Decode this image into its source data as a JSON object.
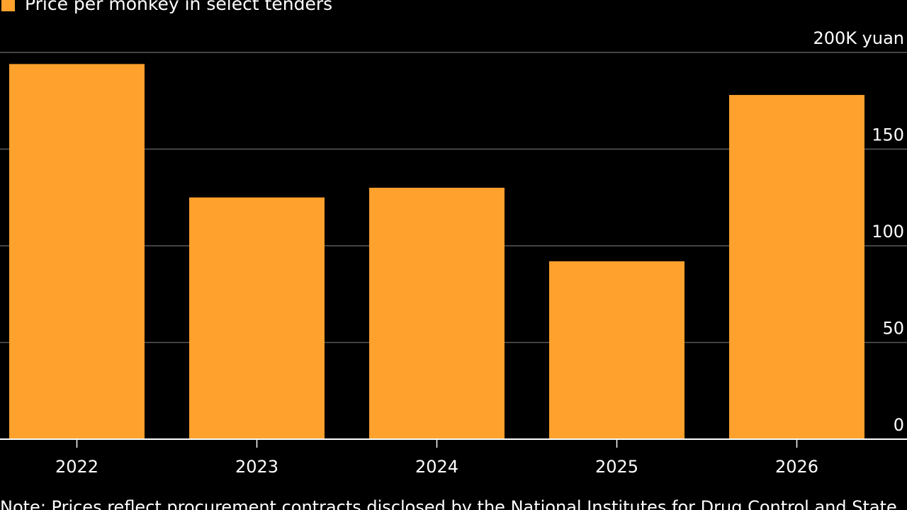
{
  "chart_data": {
    "type": "bar",
    "categories": [
      "2022",
      "2023",
      "2024",
      "2025",
      "2026"
    ],
    "series": [
      {
        "name": "Price per monkey in select tenders",
        "values": [
          194,
          125,
          130,
          92,
          178
        ],
        "color": "#FFA12D"
      }
    ],
    "ylim": [
      0,
      200
    ],
    "yticks": [
      {
        "value": 200,
        "label": "200K yuan"
      },
      {
        "value": 150,
        "label": "150"
      },
      {
        "value": 100,
        "label": "100"
      },
      {
        "value": 50,
        "label": "50"
      },
      {
        "value": 0,
        "label": "0"
      }
    ],
    "y_axis_side": "right",
    "grid": true,
    "legend_position": "top-left",
    "note": "Note: Prices reflect procurement contracts disclosed by the National Institutes for Drug Control and State"
  },
  "colors": {
    "background": "#000000",
    "gridline": "#5a5a5a",
    "axis": "#ffffff",
    "text": "#ffffff"
  }
}
